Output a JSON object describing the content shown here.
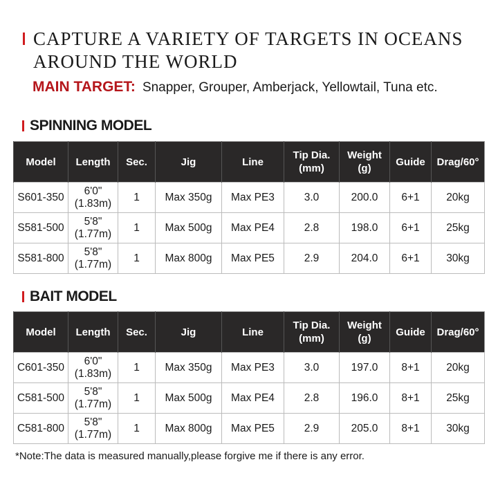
{
  "title_line1": "CAPTURE A VARIETY OF TARGETS IN OCEANS",
  "title_line2": "AROUND THE WORLD",
  "main_target": {
    "label": "MAIN TARGET:",
    "value": "Snapper, Grouper, Amberjack, Yellowtail, Tuna etc."
  },
  "accent_color": "#d01c1f",
  "headers": [
    "Model",
    "Length",
    "Sec.",
    "Jig",
    "Line",
    "Tip Dia.\n(mm)",
    "Weight\n(g)",
    "Guide",
    "Drag/60°"
  ],
  "spinning": {
    "title": "SPINNING MODEL",
    "rows": [
      [
        "S601-350",
        "6'0\"",
        "(1.83m)",
        "1",
        "Max 350g",
        "Max PE3",
        "3.0",
        "200.0",
        "6+1",
        "20kg"
      ],
      [
        "S581-500",
        "5'8\"",
        "(1.77m)",
        "1",
        "Max 500g",
        "Max PE4",
        "2.8",
        "198.0",
        "6+1",
        "25kg"
      ],
      [
        "S581-800",
        "5'8\"",
        "(1.77m)",
        "1",
        "Max 800g",
        "Max PE5",
        "2.9",
        "204.0",
        "6+1",
        "30kg"
      ]
    ]
  },
  "bait": {
    "title": "BAIT MODEL",
    "rows": [
      [
        "C601-350",
        "6'0\"",
        "(1.83m)",
        "1",
        "Max 350g",
        "Max PE3",
        "3.0",
        "197.0",
        "8+1",
        "20kg"
      ],
      [
        "C581-500",
        "5'8\"",
        "(1.77m)",
        "1",
        "Max 500g",
        "Max PE4",
        "2.8",
        "196.0",
        "8+1",
        "25kg"
      ],
      [
        "C581-800",
        "5'8\"",
        "(1.77m)",
        "1",
        "Max 800g",
        "Max PE5",
        "2.9",
        "205.0",
        "8+1",
        "30kg"
      ]
    ]
  },
  "note": "*Note:The data is measured manually,please forgive me if there is any error."
}
